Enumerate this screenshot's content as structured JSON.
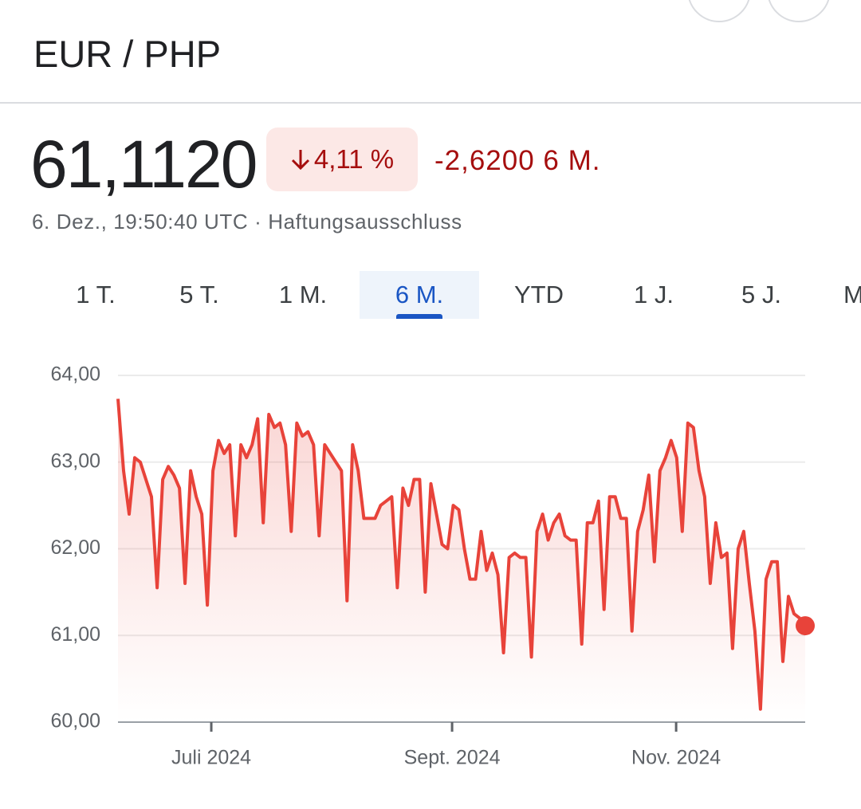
{
  "header": {
    "title": "EUR / PHP"
  },
  "quote": {
    "price": "61,1120",
    "change_percent": "4,11 %",
    "change": "-2,6200 6 M.",
    "timestamp": "6. Dez., 19:50:40 UTC",
    "separator": "·",
    "disclaimer": "Haftungsausschluss"
  },
  "tabs": [
    "1 T.",
    "5 T.",
    "1 M.",
    "6 M.",
    "YTD",
    "1 J.",
    "5 J.",
    "M"
  ],
  "selected_tab": 3,
  "chart_data": {
    "type": "line",
    "series": [
      {
        "name": "EUR / PHP",
        "color": "#e8433a",
        "values": [
          63.73,
          62.9,
          62.4,
          63.05,
          63.0,
          62.8,
          62.6,
          61.55,
          62.8,
          62.95,
          62.85,
          62.7,
          61.6,
          62.9,
          62.6,
          62.4,
          61.35,
          62.9,
          63.25,
          63.1,
          63.2,
          62.15,
          63.2,
          63.05,
          63.2,
          63.5,
          62.3,
          63.55,
          63.4,
          63.45,
          63.2,
          62.2,
          63.45,
          63.3,
          63.35,
          63.2,
          62.15,
          63.2,
          63.1,
          63.0,
          62.9,
          61.4,
          63.2,
          62.9,
          62.35,
          62.35,
          62.35,
          62.5,
          62.55,
          62.6,
          61.55,
          62.7,
          62.5,
          62.8,
          62.8,
          61.5,
          62.75,
          62.4,
          62.05,
          62.0,
          62.5,
          62.45,
          62.0,
          61.65,
          61.65,
          62.2,
          61.75,
          61.95,
          61.7,
          60.8,
          61.9,
          61.95,
          61.9,
          61.9,
          60.75,
          62.2,
          62.4,
          62.1,
          62.3,
          62.4,
          62.15,
          62.1,
          62.1,
          60.9,
          62.3,
          62.3,
          62.55,
          61.3,
          62.6,
          62.6,
          62.35,
          62.35,
          61.05,
          62.2,
          62.45,
          62.85,
          61.85,
          62.9,
          63.05,
          63.25,
          63.05,
          62.2,
          63.45,
          63.4,
          62.9,
          62.6,
          61.6,
          62.3,
          61.9,
          61.95,
          60.85,
          62.0,
          62.2,
          61.6,
          61.05,
          60.15,
          61.65,
          61.85,
          61.85,
          60.7,
          61.45,
          61.25,
          61.2,
          61.112
        ]
      }
    ],
    "xlim": [
      0,
      123
    ],
    "xticks": [
      {
        "value": 16.7,
        "label": "Juli 2024"
      },
      {
        "value": 59.8,
        "label": "Sept. 2024"
      },
      {
        "value": 99.9,
        "label": "Nov. 2024"
      }
    ],
    "ylim": [
      60,
      64
    ],
    "yticks": [
      {
        "value": 60,
        "label": "60,00"
      },
      {
        "value": 61,
        "label": "61,00"
      },
      {
        "value": 62,
        "label": "62,00"
      },
      {
        "value": 63,
        "label": "63,00"
      },
      {
        "value": 64,
        "label": "64,00"
      }
    ],
    "grid": true
  }
}
